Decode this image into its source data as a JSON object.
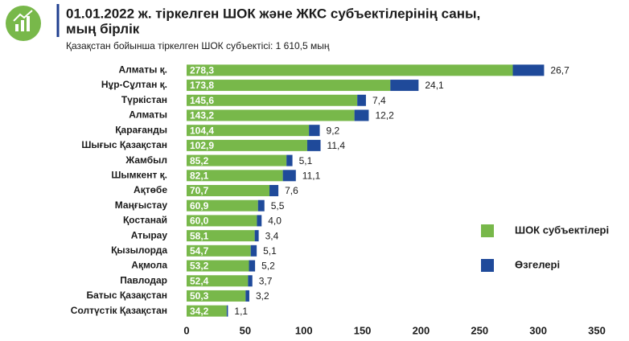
{
  "chart_data": {
    "type": "stacked_barh",
    "title": [
      "01.01.2022 ж. тіркелген ШОК және ЖКС субъектілерінің саны,",
      "мың бірлік"
    ],
    "subtitle": "Қазақстан бойынша тіркелген ШОК субъектісі: 1 610,5 мың",
    "categories": [
      "Алматы қ.",
      "Нұр-Сұлтан қ.",
      "Түркістан",
      "Алматы",
      "Қарағанды",
      "Шығыс Қазақстан",
      "Жамбыл",
      "Шымкент қ.",
      "Ақтөбе",
      "Маңғыстау",
      "Қостанай",
      "Атырау",
      "Қызылорда",
      "Ақмола",
      "Павлодар",
      "Батыс Қазақстан",
      "Солтүстік Қазақстан"
    ],
    "series": [
      {
        "name": "ШОК субъектілері",
        "color": "#78b84a",
        "values": [
          278.3,
          173.8,
          145.6,
          143.2,
          104.4,
          102.9,
          85.2,
          82.1,
          70.7,
          60.9,
          60.0,
          58.1,
          54.7,
          53.2,
          52.4,
          50.3,
          34.2
        ],
        "value_labels": [
          "278,3",
          "173,8",
          "145,6",
          "143,2",
          "104,4",
          "102,9",
          "85,2",
          "82,1",
          "70,7",
          "60,9",
          "60,0",
          "58,1",
          "54,7",
          "53,2",
          "52,4",
          "50,3",
          "34,2"
        ]
      },
      {
        "name": "Өзгелері",
        "color": "#1f4a9a",
        "values": [
          26.7,
          24.1,
          7.4,
          12.2,
          9.2,
          11.4,
          5.1,
          11.1,
          7.6,
          5.5,
          4.0,
          3.4,
          5.1,
          5.2,
          3.7,
          3.2,
          1.1
        ],
        "value_labels": [
          "26,7",
          "24,1",
          "7,4",
          "12,2",
          "9,2",
          "11,4",
          "5,1",
          "11,1",
          "7,6",
          "5,5",
          "4,0",
          "3,4",
          "5,1",
          "5,2",
          "3,7",
          "3,2",
          "1,1"
        ]
      }
    ],
    "xlim": [
      0,
      350
    ],
    "xticks": [
      0,
      50,
      100,
      150,
      200,
      250,
      300,
      350
    ],
    "legend": "right"
  }
}
